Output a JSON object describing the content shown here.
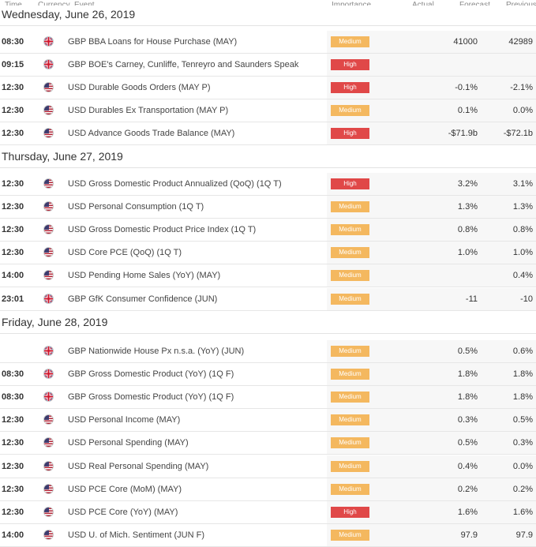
{
  "columns": {
    "time": "Time",
    "currency": "Currency",
    "event": "Event",
    "importance": "Importance",
    "actual": "Actual",
    "forecast": "Forecast",
    "previous": "Previous"
  },
  "days": [
    {
      "date": "Wednesday, June 26, 2019",
      "events": [
        {
          "time": "08:30",
          "currency": "GBP",
          "flag_icon": "uk-flag-icon",
          "event": "GBP BBA Loans for House Purchase (MAY)",
          "importance": "Medium",
          "actual": "",
          "forecast": "41000",
          "previous": "42989"
        },
        {
          "time": "09:15",
          "currency": "GBP",
          "flag_icon": "uk-flag-icon",
          "event": "GBP BOE's Carney, Cunliffe, Tenreyro and Saunders Speak",
          "importance": "High",
          "actual": "",
          "forecast": "",
          "previous": ""
        },
        {
          "time": "12:30",
          "currency": "USD",
          "flag_icon": "us-flag-icon",
          "event": "USD Durable Goods Orders (MAY P)",
          "importance": "High",
          "actual": "",
          "forecast": "-0.1%",
          "previous": "-2.1%"
        },
        {
          "time": "12:30",
          "currency": "USD",
          "flag_icon": "us-flag-icon",
          "event": "USD Durables Ex Transportation (MAY P)",
          "importance": "Medium",
          "actual": "",
          "forecast": "0.1%",
          "previous": "0.0%"
        },
        {
          "time": "12:30",
          "currency": "USD",
          "flag_icon": "us-flag-icon",
          "event": "USD Advance Goods Trade Balance (MAY)",
          "importance": "High",
          "actual": "",
          "forecast": "-$71.9b",
          "previous": "-$72.1b"
        }
      ]
    },
    {
      "date": "Thursday, June 27, 2019",
      "events": [
        {
          "time": "12:30",
          "currency": "USD",
          "flag_icon": "us-flag-icon",
          "event": "USD Gross Domestic Product Annualized (QoQ) (1Q T)",
          "importance": "High",
          "actual": "",
          "forecast": "3.2%",
          "previous": "3.1%"
        },
        {
          "time": "12:30",
          "currency": "USD",
          "flag_icon": "us-flag-icon",
          "event": "USD Personal Consumption (1Q T)",
          "importance": "Medium",
          "actual": "",
          "forecast": "1.3%",
          "previous": "1.3%"
        },
        {
          "time": "12:30",
          "currency": "USD",
          "flag_icon": "us-flag-icon",
          "event": "USD Gross Domestic Product Price Index (1Q T)",
          "importance": "Medium",
          "actual": "",
          "forecast": "0.8%",
          "previous": "0.8%"
        },
        {
          "time": "12:30",
          "currency": "USD",
          "flag_icon": "us-flag-icon",
          "event": "USD Core PCE (QoQ) (1Q T)",
          "importance": "Medium",
          "actual": "",
          "forecast": "1.0%",
          "previous": "1.0%"
        },
        {
          "time": "14:00",
          "currency": "USD",
          "flag_icon": "us-flag-icon",
          "event": "USD Pending Home Sales (YoY) (MAY)",
          "importance": "Medium",
          "actual": "",
          "forecast": "",
          "previous": "0.4%"
        },
        {
          "time": "23:01",
          "currency": "GBP",
          "flag_icon": "uk-flag-icon",
          "event": "GBP GfK Consumer Confidence (JUN)",
          "importance": "Medium",
          "actual": "",
          "forecast": "-11",
          "previous": "-10"
        }
      ]
    },
    {
      "date": "Friday, June 28, 2019",
      "events": [
        {
          "time": "",
          "currency": "GBP",
          "flag_icon": "uk-flag-icon",
          "event": "GBP Nationwide House Px n.s.a. (YoY) (JUN)",
          "importance": "Medium",
          "actual": "",
          "forecast": "0.5%",
          "previous": "0.6%"
        },
        {
          "time": "08:30",
          "currency": "GBP",
          "flag_icon": "uk-flag-icon",
          "event": "GBP Gross Domestic Product (YoY) (1Q F)",
          "importance": "Medium",
          "actual": "",
          "forecast": "1.8%",
          "previous": "1.8%"
        },
        {
          "time": "08:30",
          "currency": "GBP",
          "flag_icon": "uk-flag-icon",
          "event": "GBP Gross Domestic Product (YoY) (1Q F)",
          "importance": "Medium",
          "actual": "",
          "forecast": "1.8%",
          "previous": "1.8%"
        },
        {
          "time": "12:30",
          "currency": "USD",
          "flag_icon": "us-flag-icon",
          "event": "USD Personal Income (MAY)",
          "importance": "Medium",
          "actual": "",
          "forecast": "0.3%",
          "previous": "0.5%"
        },
        {
          "time": "12:30",
          "currency": "USD",
          "flag_icon": "us-flag-icon",
          "event": "USD Personal Spending (MAY)",
          "importance": "Medium",
          "actual": "",
          "forecast": "0.5%",
          "previous": "0.3%"
        },
        {
          "time": "12:30",
          "currency": "USD",
          "flag_icon": "us-flag-icon",
          "event": "USD Real Personal Spending (MAY)",
          "importance": "Medium",
          "actual": "",
          "forecast": "0.4%",
          "previous": "0.0%"
        },
        {
          "time": "12:30",
          "currency": "USD",
          "flag_icon": "us-flag-icon",
          "event": "USD PCE Core (MoM) (MAY)",
          "importance": "Medium",
          "actual": "",
          "forecast": "0.2%",
          "previous": "0.2%"
        },
        {
          "time": "12:30",
          "currency": "USD",
          "flag_icon": "us-flag-icon",
          "event": "USD PCE Core (YoY) (MAY)",
          "importance": "High",
          "actual": "",
          "forecast": "1.6%",
          "previous": "1.6%"
        },
        {
          "time": "14:00",
          "currency": "USD",
          "flag_icon": "us-flag-icon",
          "event": "USD U. of Mich. Sentiment (JUN F)",
          "importance": "Medium",
          "actual": "",
          "forecast": "97.9",
          "previous": "97.9"
        }
      ]
    }
  ]
}
